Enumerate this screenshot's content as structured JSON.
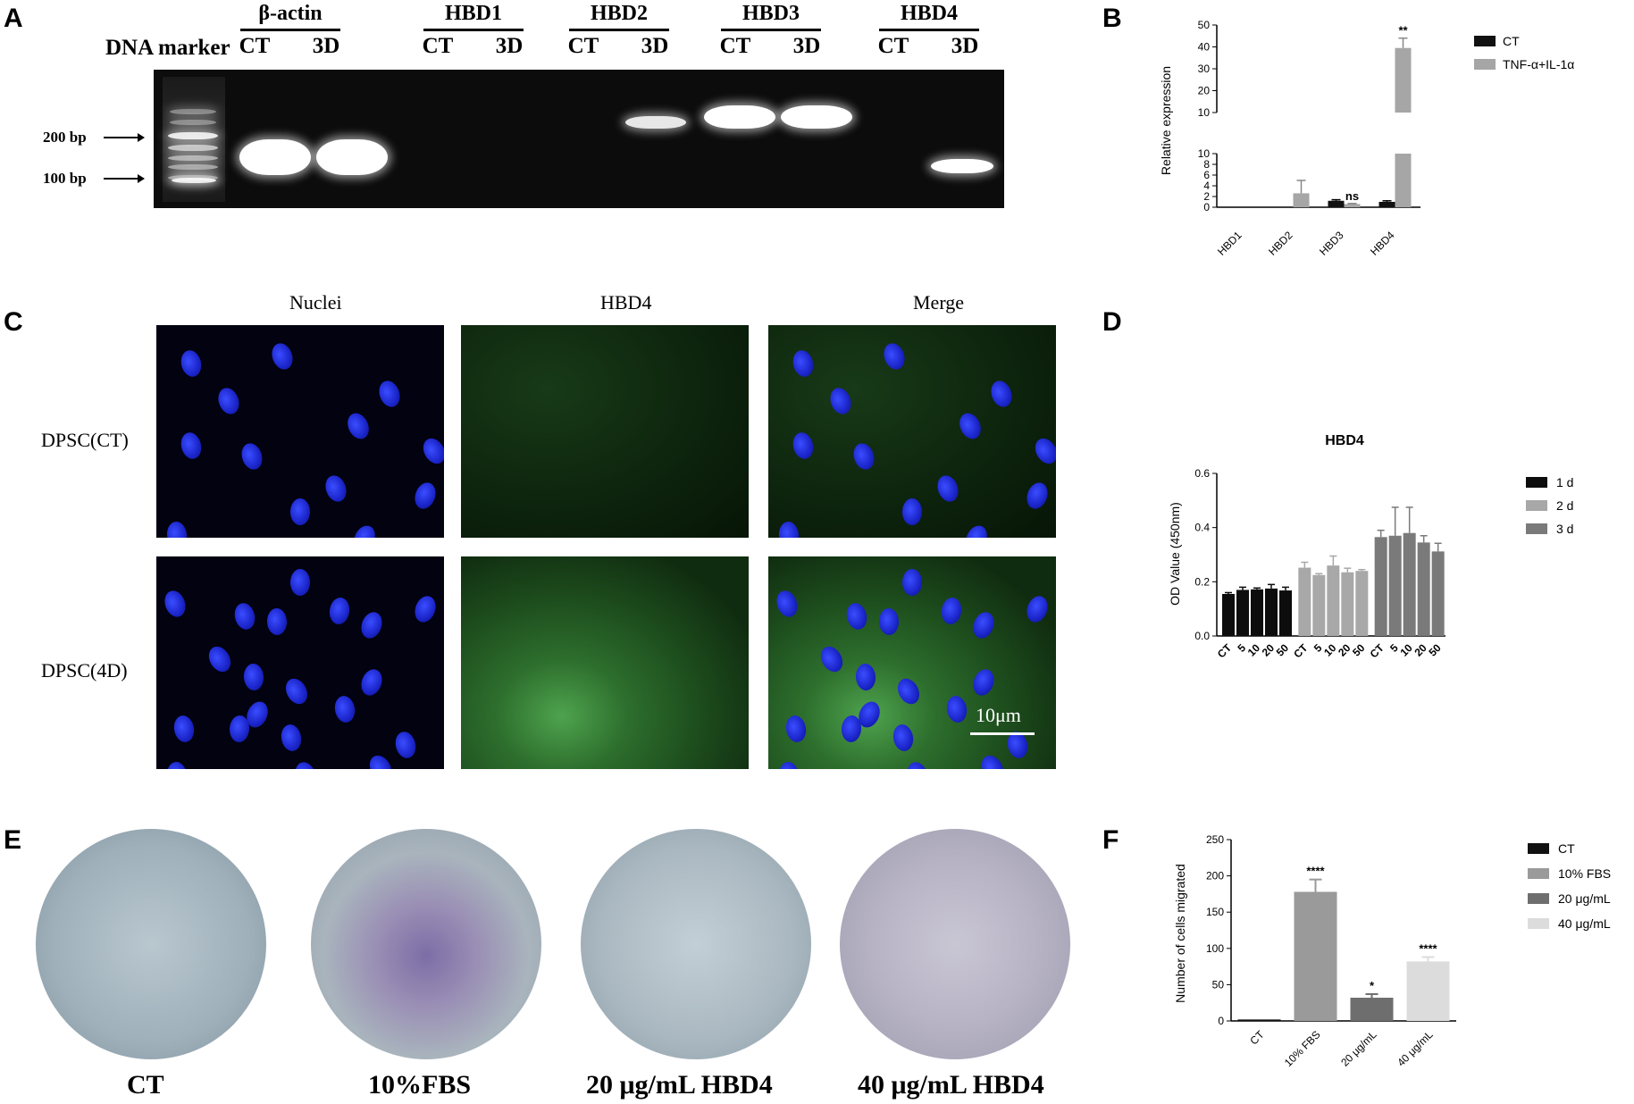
{
  "panelA": {
    "letter": "A",
    "marker_title": "DNA marker",
    "genes": [
      {
        "name": "β-actin",
        "ct": "CT",
        "td": "3D"
      },
      {
        "name": "HBD1",
        "ct": "CT",
        "td": "3D"
      },
      {
        "name": "HBD2",
        "ct": "CT",
        "td": "3D"
      },
      {
        "name": "HBD3",
        "ct": "CT",
        "td": "3D"
      },
      {
        "name": "HBD4",
        "ct": "CT",
        "td": "3D"
      }
    ],
    "size_labels": [
      "200 bp",
      "100 bp"
    ]
  },
  "panelC": {
    "letter": "C",
    "columns": [
      "Nuclei",
      "HBD4",
      "Merge"
    ],
    "rows": [
      "DPSC(CT)",
      "DPSC(4D)"
    ],
    "scale_bar": "10μm"
  },
  "panelE": {
    "letter": "E",
    "labels": [
      "CT",
      "10%FBS",
      "20 μg/mL HBD4",
      "40 μg/mL HBD4"
    ]
  },
  "chart_data": [
    {
      "panel": "B",
      "type": "bar",
      "ylabel": "Relative expression",
      "categories": [
        "HBD1",
        "HBD2",
        "HBD3",
        "HBD4"
      ],
      "axis_break": {
        "lower": [
          0,
          10
        ],
        "upper": [
          10,
          50
        ]
      },
      "lower_ticks": [
        0,
        2,
        4,
        6,
        8,
        10
      ],
      "upper_ticks": [
        10,
        20,
        30,
        40,
        50
      ],
      "series": [
        {
          "name": "CT",
          "color": "#111111",
          "values": [
            0,
            0,
            1.2,
            1.0
          ],
          "errors": [
            0,
            0,
            0.2,
            0.2
          ]
        },
        {
          "name": "TNF-α+IL-1α",
          "color": "#a6a6a6",
          "values": [
            0,
            2.6,
            0.6,
            39.5
          ],
          "errors": [
            0,
            2.4,
            0.1,
            4.5
          ]
        }
      ],
      "annotations": [
        {
          "category": "HBD3",
          "text": "ns"
        },
        {
          "category": "HBD4",
          "text": "**"
        }
      ],
      "legend": "top-right"
    },
    {
      "panel": "D",
      "type": "bar",
      "title": "HBD4",
      "ylabel": "OD Value (450nm)",
      "ylim": [
        0,
        0.6
      ],
      "yticks": [
        0.0,
        0.2,
        0.4,
        0.6
      ],
      "categories": [
        "CT",
        "5",
        "10",
        "20",
        "50"
      ],
      "series": [
        {
          "name": "1 d",
          "color": "#0d0d0d",
          "values": [
            0.155,
            0.17,
            0.172,
            0.175,
            0.168
          ],
          "errors": [
            0.005,
            0.01,
            0.005,
            0.015,
            0.012
          ]
        },
        {
          "name": "2 d",
          "color": "#a8a8a8",
          "values": [
            0.252,
            0.225,
            0.26,
            0.235,
            0.24
          ],
          "errors": [
            0.02,
            0.005,
            0.035,
            0.015,
            0.005
          ]
        },
        {
          "name": "3 d",
          "color": "#7a7a7a",
          "values": [
            0.365,
            0.37,
            0.38,
            0.345,
            0.312
          ],
          "errors": [
            0.025,
            0.105,
            0.095,
            0.025,
            0.03
          ]
        }
      ],
      "legend": "top-right"
    },
    {
      "panel": "F",
      "type": "bar",
      "ylabel": "Number of cells migrated",
      "ylim": [
        0,
        250
      ],
      "yticks": [
        0,
        50,
        100,
        150,
        200,
        250
      ],
      "categories": [
        "CT",
        "10% FBS",
        "20 μg/mL",
        "40 μg/mL"
      ],
      "series": [
        {
          "name": "CT",
          "color": "#111111"
        },
        {
          "name": "10% FBS",
          "color": "#9a9a9a"
        },
        {
          "name": "20 μg/mL",
          "color": "#6e6e6e"
        },
        {
          "name": "40 μg/mL",
          "color": "#dcdcdc"
        }
      ],
      "values": [
        2,
        178,
        32,
        82
      ],
      "errors": [
        0,
        17,
        5,
        6
      ],
      "annotations": [
        "",
        "****",
        "*",
        "****"
      ],
      "legend": "top-right"
    }
  ],
  "panel_letters": {
    "B": "B",
    "D": "D",
    "F": "F"
  }
}
